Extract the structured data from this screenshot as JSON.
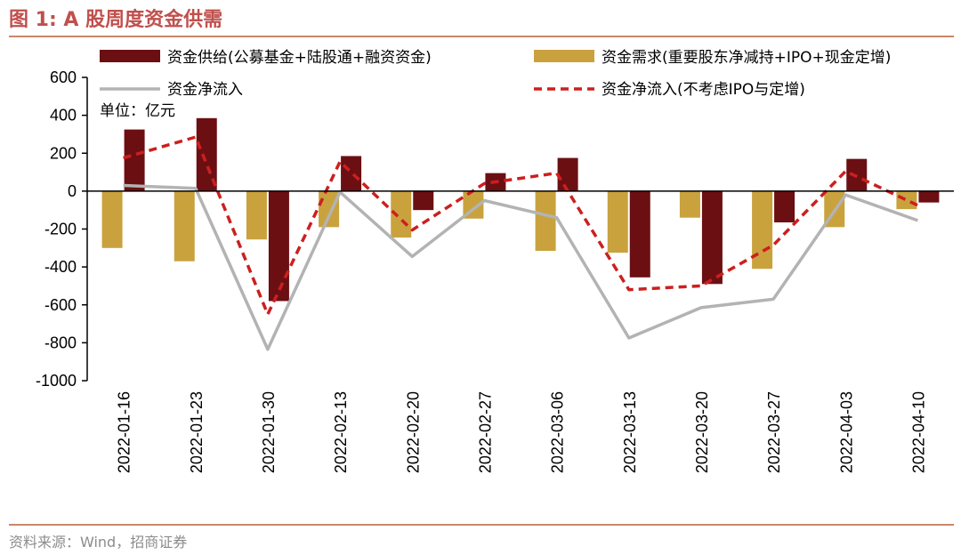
{
  "header": {
    "title": "图 1:  A 股周度资金供需"
  },
  "footer": {
    "source": "资料来源：Wind，招商证券"
  },
  "chart_data": {
    "type": "bar",
    "title": "图 1:  A 股周度资金供需",
    "unit_label": "单位：亿元",
    "categories": [
      "2022-01-16",
      "2022-01-23",
      "2022-01-30",
      "2022-02-13",
      "2022-02-20",
      "2022-02-27",
      "2022-03-06",
      "2022-03-13",
      "2022-03-20",
      "2022-03-27",
      "2022-04-03",
      "2022-04-10"
    ],
    "ylim": [
      -1000,
      600
    ],
    "yticks": [
      600,
      400,
      200,
      0,
      -200,
      -400,
      -600,
      -800,
      -1000
    ],
    "series": [
      {
        "name": "资金供给(公募基金+陆股通+融资资金)",
        "kind": "bar",
        "color": "#6b0f13",
        "values": [
          325,
          385,
          -580,
          185,
          -100,
          95,
          175,
          -455,
          -490,
          -165,
          170,
          -60
        ]
      },
      {
        "name": "资金需求(重要股东净减持+IPO+现金定增)",
        "kind": "bar",
        "color": "#c9a23e",
        "values": [
          -300,
          -370,
          -255,
          -190,
          -245,
          -145,
          -315,
          -325,
          -140,
          -410,
          -190,
          -95
        ]
      },
      {
        "name": "资金净流入",
        "kind": "line",
        "color": "#b3b3b3",
        "values": [
          30,
          15,
          -835,
          -5,
          -345,
          -50,
          -140,
          -775,
          -615,
          -570,
          -20,
          -155
        ]
      },
      {
        "name": "资金净流入(不考虑IPO与定增)",
        "kind": "line-dashed",
        "color": "#cc1f1f",
        "values": [
          175,
          285,
          -650,
          155,
          -205,
          40,
          95,
          -520,
          -500,
          -285,
          105,
          -75
        ]
      }
    ]
  }
}
